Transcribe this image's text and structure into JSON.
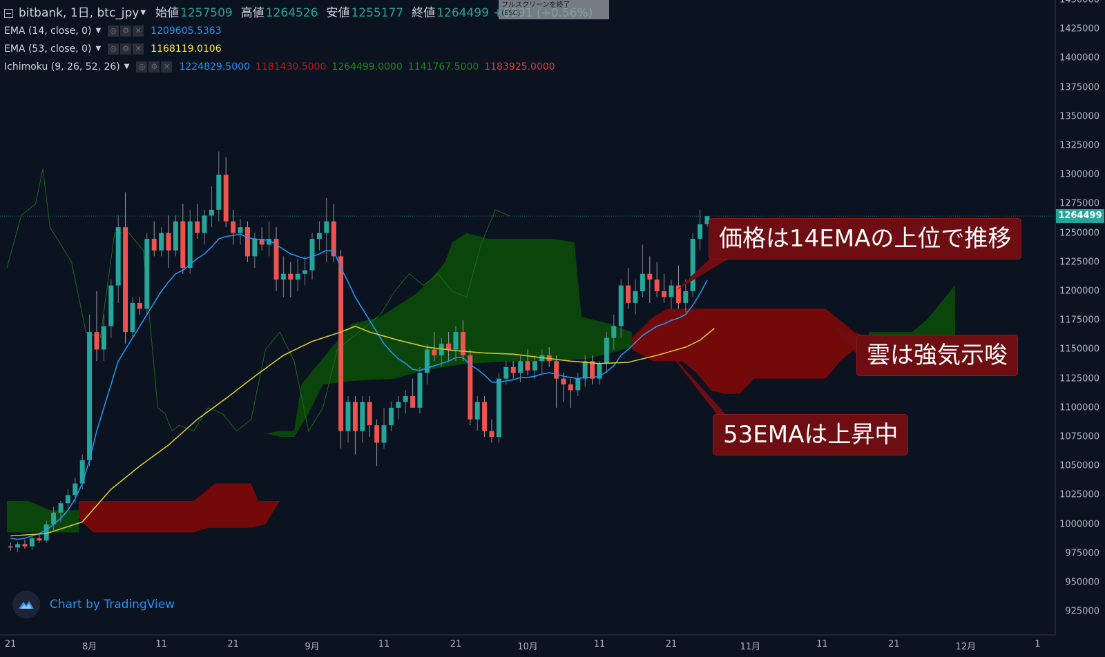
{
  "header": {
    "symbol_title": "bitbank, 1日, btc_jpy",
    "open_label": "始値",
    "open_value": "1257509",
    "high_label": "高値",
    "high_value": "1264526",
    "low_label": "安値",
    "low_value": "1255177",
    "close_label": "終値",
    "close_value": "1264499",
    "change_value": "+6991 (+0.56%)"
  },
  "fullscreen_tip": {
    "line1": "フルスクリーンを終了",
    "line2": "(ESC)"
  },
  "indicators": [
    {
      "name": "EMA (14, close, 0)",
      "values": [
        {
          "text": "1209605.5363",
          "color": "#2196f3"
        }
      ]
    },
    {
      "name": "EMA (53, close, 0)",
      "values": [
        {
          "text": "1168119.0106",
          "color": "#ffeb3b"
        }
      ]
    },
    {
      "name": "Ichimoku (9, 26, 52, 26)",
      "values": [
        {
          "text": "1224829.5000",
          "color": "#2196f3"
        },
        {
          "text": "1181430.5000",
          "color": "#b71c1c"
        },
        {
          "text": "1264499.0000",
          "color": "#1b8a1b"
        },
        {
          "text": "1141767.5000",
          "color": "#1b8a1b"
        },
        {
          "text": "1183925.0000",
          "color": "#e53935"
        }
      ]
    }
  ],
  "callouts": {
    "price_above_ema": "価格は14EMAの上位で推移",
    "cloud_bullish": "雲は強気示唆",
    "ema53_rising": "53EMAは上昇中"
  },
  "credit": "Chart by TradingView",
  "colors": {
    "background": "#0b1220",
    "up_candle": "#26a69a",
    "down_candle": "#ef5350",
    "ema14": "#2196f3",
    "ema53": "#d7c82a",
    "cloud_bull": "#0b4a0b",
    "cloud_bear": "#7a0a0a",
    "chikou": "#1b6b1b",
    "callout_bg": "#6e0d12"
  },
  "chart_data": {
    "type": "candlestick",
    "ylim": [
      905000,
      1450000
    ],
    "y_ticks": [
      1450000,
      1425000,
      1400000,
      1375000,
      1350000,
      1325000,
      1300000,
      1275000,
      1250000,
      1225000,
      1200000,
      1175000,
      1150000,
      1125000,
      1100000,
      1075000,
      1050000,
      1025000,
      1000000,
      975000,
      950000,
      925000
    ],
    "y_tick_labels": [
      "1450000",
      "1425000",
      "1400000",
      "1375000",
      "1350000",
      "1325000",
      "1300000",
      "1275000",
      "1250000",
      "1225000",
      "1200000",
      "1175000",
      "1150000",
      "1125000",
      "1100000",
      "1075000",
      "1050000",
      "1025000",
      "1000000",
      "975000",
      "950000",
      "925000"
    ],
    "last_price": 1264499,
    "last_price_label": "1264499",
    "x_ticks": [
      {
        "label": "21",
        "day": 0
      },
      {
        "label": "8月",
        "day": 11
      },
      {
        "label": "11",
        "day": 21
      },
      {
        "label": "21",
        "day": 31
      },
      {
        "label": "9月",
        "day": 42
      },
      {
        "label": "11",
        "day": 52
      },
      {
        "label": "21",
        "day": 62
      },
      {
        "label": "10月",
        "day": 72
      },
      {
        "label": "11",
        "day": 82
      },
      {
        "label": "21",
        "day": 92
      },
      {
        "label": "11月",
        "day": 103
      },
      {
        "label": "11",
        "day": 113
      },
      {
        "label": "21",
        "day": 123
      },
      {
        "label": "12月",
        "day": 133
      },
      {
        "label": "1",
        "day": 143
      }
    ],
    "candles": [
      [
        981000,
        984000,
        977000,
        980000
      ],
      [
        980000,
        985000,
        976000,
        983000
      ],
      [
        983000,
        987000,
        979000,
        981000
      ],
      [
        981000,
        990000,
        978000,
        988000
      ],
      [
        988000,
        992000,
        984000,
        986000
      ],
      [
        986000,
        1003000,
        984000,
        1000000
      ],
      [
        1000000,
        1015000,
        995000,
        1010000
      ],
      [
        1010000,
        1020000,
        1002000,
        1018000
      ],
      [
        1018000,
        1030000,
        1012000,
        1025000
      ],
      [
        1025000,
        1040000,
        1018000,
        1035000
      ],
      [
        1035000,
        1060000,
        1030000,
        1055000
      ],
      [
        1055000,
        1180000,
        1050000,
        1165000
      ],
      [
        1165000,
        1200000,
        1140000,
        1150000
      ],
      [
        1150000,
        1180000,
        1140000,
        1170000
      ],
      [
        1170000,
        1210000,
        1160000,
        1205000
      ],
      [
        1205000,
        1265000,
        1190000,
        1255000
      ],
      [
        1255000,
        1285000,
        1155000,
        1165000
      ],
      [
        1165000,
        1195000,
        1160000,
        1190000
      ],
      [
        1190000,
        1195000,
        1180000,
        1185000
      ],
      [
        1185000,
        1250000,
        1180000,
        1245000
      ],
      [
        1245000,
        1260000,
        1230000,
        1235000
      ],
      [
        1235000,
        1255000,
        1230000,
        1250000
      ],
      [
        1250000,
        1265000,
        1220000,
        1235000
      ],
      [
        1235000,
        1265000,
        1230000,
        1260000
      ],
      [
        1260000,
        1275000,
        1215000,
        1220000
      ],
      [
        1220000,
        1270000,
        1215000,
        1260000
      ],
      [
        1260000,
        1275000,
        1245000,
        1250000
      ],
      [
        1250000,
        1270000,
        1240000,
        1265000
      ],
      [
        1265000,
        1290000,
        1255000,
        1270000
      ],
      [
        1270000,
        1320000,
        1260000,
        1300000
      ],
      [
        1300000,
        1315000,
        1255000,
        1260000
      ],
      [
        1260000,
        1270000,
        1240000,
        1250000
      ],
      [
        1250000,
        1262000,
        1240000,
        1255000
      ],
      [
        1255000,
        1260000,
        1225000,
        1230000
      ],
      [
        1230000,
        1250000,
        1220000,
        1245000
      ],
      [
        1245000,
        1255000,
        1235000,
        1240000
      ],
      [
        1240000,
        1260000,
        1230000,
        1245000
      ],
      [
        1245000,
        1255000,
        1200000,
        1210000
      ],
      [
        1210000,
        1230000,
        1195000,
        1215000
      ],
      [
        1215000,
        1225000,
        1195000,
        1210000
      ],
      [
        1210000,
        1228000,
        1200000,
        1215000
      ],
      [
        1215000,
        1230000,
        1205000,
        1218000
      ],
      [
        1218000,
        1250000,
        1210000,
        1245000
      ],
      [
        1245000,
        1260000,
        1235000,
        1250000
      ],
      [
        1250000,
        1280000,
        1225000,
        1260000
      ],
      [
        1260000,
        1275000,
        1225000,
        1230000
      ],
      [
        1230000,
        1235000,
        1065000,
        1080000
      ],
      [
        1080000,
        1110000,
        1070000,
        1105000
      ],
      [
        1105000,
        1110000,
        1060000,
        1080000
      ],
      [
        1080000,
        1110000,
        1070000,
        1105000
      ],
      [
        1105000,
        1110000,
        1075000,
        1085000
      ],
      [
        1085000,
        1090000,
        1050000,
        1070000
      ],
      [
        1070000,
        1100000,
        1065000,
        1085000
      ],
      [
        1085000,
        1105000,
        1080000,
        1100000
      ],
      [
        1100000,
        1110000,
        1090000,
        1105000
      ],
      [
        1105000,
        1115000,
        1095000,
        1110000
      ],
      [
        1110000,
        1125000,
        1100000,
        1100000
      ],
      [
        1100000,
        1135000,
        1095000,
        1130000
      ],
      [
        1130000,
        1155000,
        1120000,
        1150000
      ],
      [
        1150000,
        1165000,
        1140000,
        1145000
      ],
      [
        1145000,
        1160000,
        1135000,
        1155000
      ],
      [
        1155000,
        1165000,
        1140000,
        1150000
      ],
      [
        1150000,
        1170000,
        1140000,
        1165000
      ],
      [
        1165000,
        1175000,
        1140000,
        1145000
      ],
      [
        1145000,
        1150000,
        1085000,
        1090000
      ],
      [
        1090000,
        1110000,
        1080000,
        1105000
      ],
      [
        1105000,
        1110000,
        1075000,
        1080000
      ],
      [
        1080000,
        1090000,
        1070000,
        1075000
      ],
      [
        1075000,
        1130000,
        1070000,
        1125000
      ],
      [
        1125000,
        1140000,
        1120000,
        1135000
      ],
      [
        1135000,
        1140000,
        1125000,
        1130000
      ],
      [
        1130000,
        1145000,
        1122000,
        1140000
      ],
      [
        1140000,
        1150000,
        1128000,
        1132000
      ],
      [
        1132000,
        1145000,
        1125000,
        1140000
      ],
      [
        1140000,
        1150000,
        1130000,
        1145000
      ],
      [
        1145000,
        1152000,
        1135000,
        1140000
      ],
      [
        1140000,
        1145000,
        1100000,
        1125000
      ],
      [
        1125000,
        1130000,
        1105000,
        1120000
      ],
      [
        1120000,
        1125000,
        1100000,
        1115000
      ],
      [
        1115000,
        1130000,
        1110000,
        1125000
      ],
      [
        1125000,
        1145000,
        1118000,
        1140000
      ],
      [
        1140000,
        1145000,
        1120000,
        1125000
      ],
      [
        1125000,
        1140000,
        1120000,
        1138000
      ],
      [
        1138000,
        1165000,
        1130000,
        1160000
      ],
      [
        1160000,
        1180000,
        1150000,
        1170000
      ],
      [
        1170000,
        1210000,
        1160000,
        1205000
      ],
      [
        1205000,
        1220000,
        1185000,
        1190000
      ],
      [
        1190000,
        1210000,
        1180000,
        1200000
      ],
      [
        1200000,
        1240000,
        1195000,
        1215000
      ],
      [
        1215000,
        1230000,
        1190000,
        1210000
      ],
      [
        1210000,
        1225000,
        1195000,
        1200000
      ],
      [
        1200000,
        1215000,
        1190000,
        1195000
      ],
      [
        1195000,
        1210000,
        1185000,
        1205000
      ],
      [
        1205000,
        1222000,
        1185000,
        1190000
      ],
      [
        1190000,
        1210000,
        1182000,
        1200000
      ],
      [
        1200000,
        1250000,
        1195000,
        1245000
      ],
      [
        1245000,
        1270000,
        1235000,
        1257509
      ],
      [
        1257509,
        1264526,
        1255177,
        1264499
      ]
    ],
    "ema14": [
      988000,
      987000,
      988000,
      990000,
      992000,
      995000,
      1000000,
      1005000,
      1012000,
      1022000,
      1035000,
      1055000,
      1080000,
      1100000,
      1120000,
      1140000,
      1150000,
      1160000,
      1170000,
      1180000,
      1190000,
      1200000,
      1208000,
      1215000,
      1218000,
      1223000,
      1228000,
      1232000,
      1238000,
      1245000,
      1247000,
      1248000,
      1249000,
      1246000,
      1245000,
      1244000,
      1244000,
      1240000,
      1236000,
      1232000,
      1230000,
      1228000,
      1230000,
      1232000,
      1235000,
      1235000,
      1220000,
      1208000,
      1195000,
      1185000,
      1175000,
      1165000,
      1155000,
      1148000,
      1142000,
      1138000,
      1133000,
      1132000,
      1134000,
      1136000,
      1138000,
      1140000,
      1143000,
      1143000,
      1137000,
      1133000,
      1128000,
      1122000,
      1122000,
      1123000,
      1124000,
      1126000,
      1126000,
      1127000,
      1129000,
      1130000,
      1129000,
      1127000,
      1126000,
      1125000,
      1126000,
      1126000,
      1127000,
      1131000,
      1136000,
      1145000,
      1150000,
      1156000,
      1162000,
      1166000,
      1170000,
      1172000,
      1175000,
      1177000,
      1180000,
      1188000,
      1198000,
      1209605
    ]
  }
}
